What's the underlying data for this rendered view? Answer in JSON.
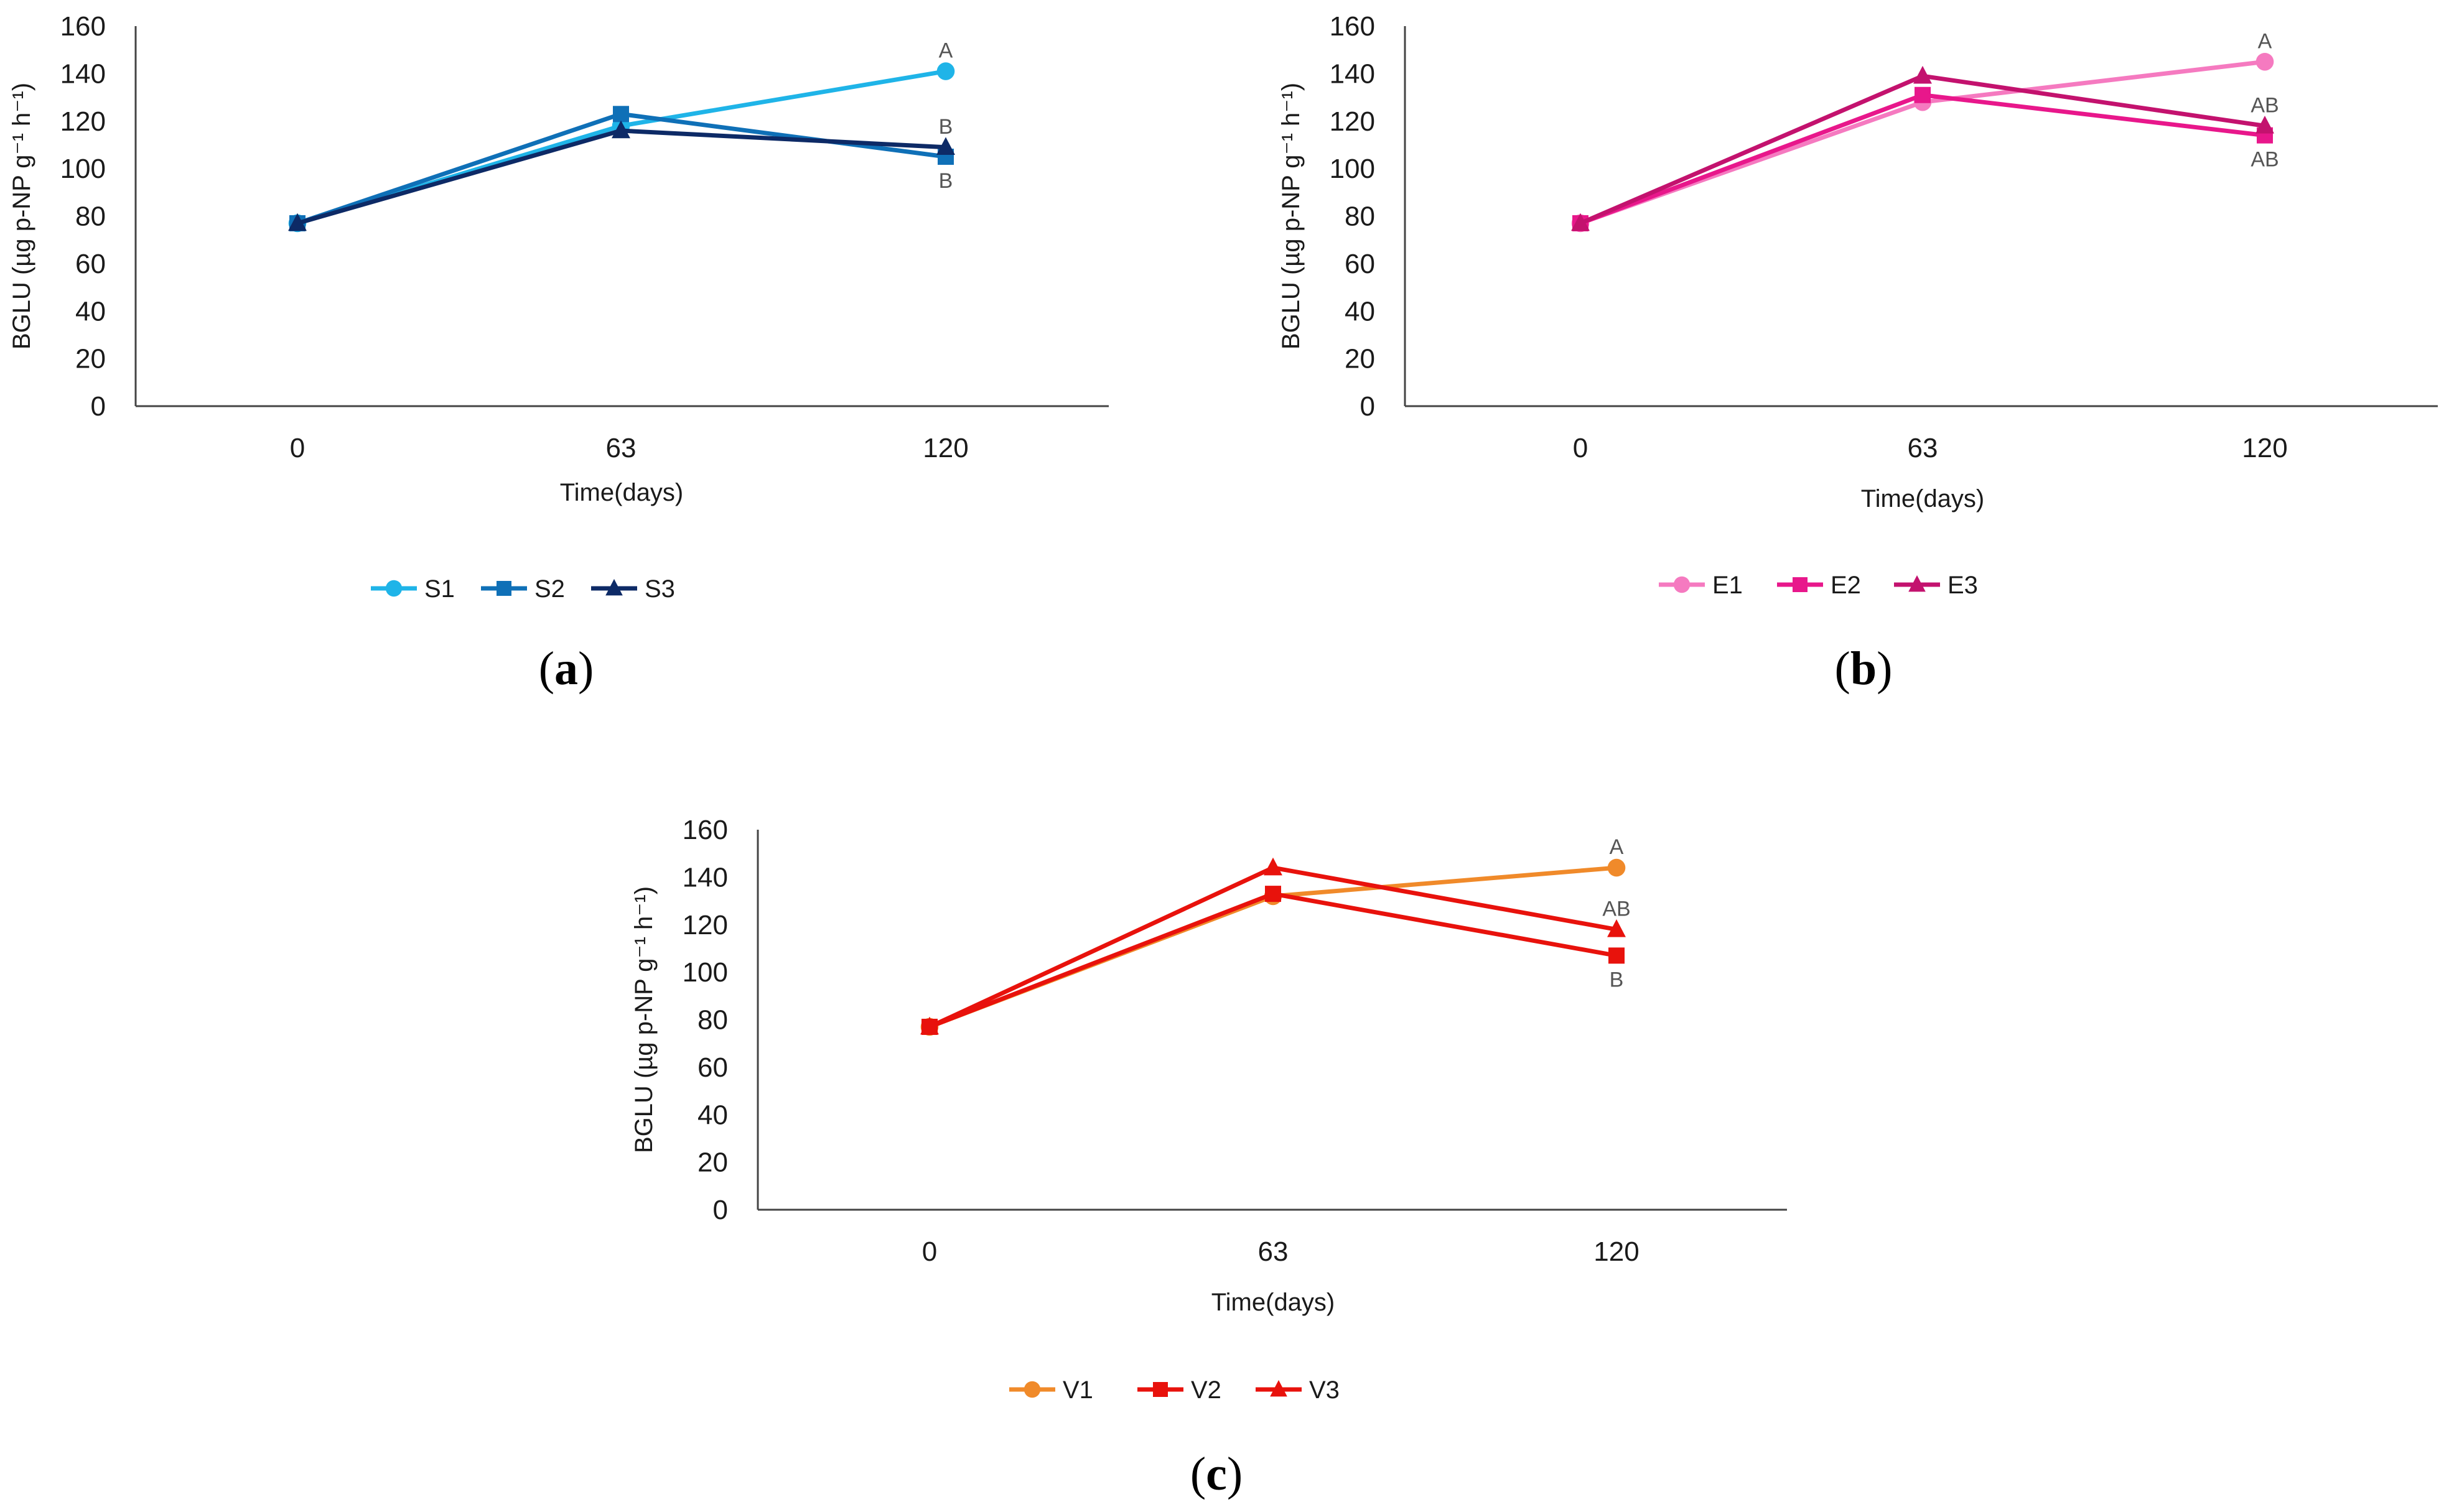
{
  "chart_data": [
    {
      "type": "line",
      "panel_label": "a",
      "ylabel": "BGLU (µg p-NP g⁻¹ h⁻¹)",
      "xlabel": "Time(days)",
      "categories": [
        "0",
        "63",
        "120"
      ],
      "ylim": [
        0,
        160
      ],
      "yticks": [
        "0",
        "20",
        "40",
        "60",
        "80",
        "100",
        "120",
        "140",
        "160"
      ],
      "grid": false,
      "legend_position": "bottom",
      "series": [
        {
          "name": "S1",
          "values": [
            77,
            118,
            141
          ],
          "color": "#1fb4e8",
          "marker": "circle"
        },
        {
          "name": "S2",
          "values": [
            77,
            123,
            105
          ],
          "color": "#0f70b7",
          "marker": "square"
        },
        {
          "name": "S3",
          "values": [
            77,
            116,
            109
          ],
          "color": "#0d2a66",
          "marker": "triangle"
        }
      ],
      "annotations": [
        {
          "text": "A",
          "x": "120",
          "y": 141,
          "position": "above"
        },
        {
          "text": "B",
          "x": "120",
          "y": 109,
          "position": "above"
        },
        {
          "text": "B",
          "x": "120",
          "y": 105,
          "position": "below"
        }
      ]
    },
    {
      "type": "line",
      "panel_label": "b",
      "ylabel": "BGLU (µg p-NP g⁻¹ h⁻¹)",
      "xlabel": "Time(days)",
      "categories": [
        "0",
        "63",
        "120"
      ],
      "ylim": [
        0,
        160
      ],
      "yticks": [
        "0",
        "20",
        "40",
        "60",
        "80",
        "100",
        "120",
        "140",
        "160"
      ],
      "grid": false,
      "legend_position": "bottom",
      "series": [
        {
          "name": "E1",
          "values": [
            77,
            128,
            145
          ],
          "color": "#f57ac0",
          "marker": "circle"
        },
        {
          "name": "E2",
          "values": [
            77,
            131,
            114
          ],
          "color": "#e8178b",
          "marker": "square"
        },
        {
          "name": "E3",
          "values": [
            77,
            139,
            118
          ],
          "color": "#c3126e",
          "marker": "triangle"
        }
      ],
      "annotations": [
        {
          "text": "A",
          "x": "120",
          "y": 145,
          "position": "above"
        },
        {
          "text": "AB",
          "x": "120",
          "y": 118,
          "position": "above"
        },
        {
          "text": "AB",
          "x": "120",
          "y": 114,
          "position": "below"
        }
      ]
    },
    {
      "type": "line",
      "panel_label": "c",
      "ylabel": "BGLU (µg p-NP g⁻¹ h⁻¹)",
      "xlabel": "Time(days)",
      "categories": [
        "0",
        "63",
        "120"
      ],
      "ylim": [
        0,
        160
      ],
      "yticks": [
        "0",
        "20",
        "40",
        "60",
        "80",
        "100",
        "120",
        "140",
        "160"
      ],
      "grid": false,
      "legend_position": "bottom",
      "series": [
        {
          "name": "V1",
          "values": [
            77,
            132,
            144
          ],
          "color": "#f08a2a",
          "marker": "circle"
        },
        {
          "name": "V2",
          "values": [
            77,
            133,
            107
          ],
          "color": "#e8120c",
          "marker": "square"
        },
        {
          "name": "V3",
          "values": [
            77,
            144,
            118
          ],
          "color": "#e8120c",
          "marker": "triangle"
        }
      ],
      "annotations": [
        {
          "text": "A",
          "x": "120",
          "y": 144,
          "position": "above"
        },
        {
          "text": "AB",
          "x": "120",
          "y": 118,
          "position": "above"
        },
        {
          "text": "B",
          "x": "120",
          "y": 107,
          "position": "below"
        }
      ]
    }
  ]
}
